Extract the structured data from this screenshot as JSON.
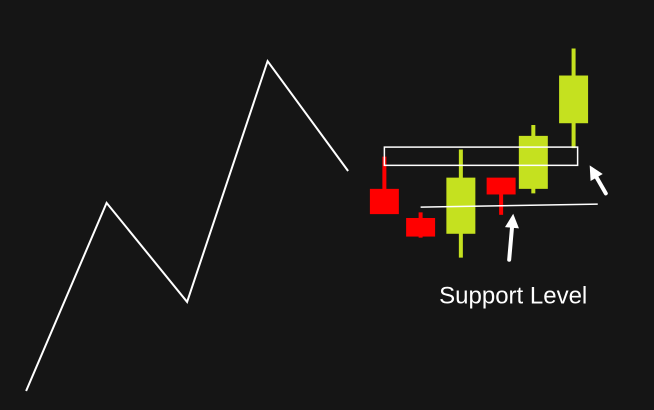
{
  "chart_data": {
    "type": "candlestick",
    "title": "",
    "xlabel": "",
    "ylabel": "",
    "grid": false,
    "legend": "none",
    "colors": {
      "background": "#151515",
      "bullish": "#c5e11f",
      "bearish": "#ff0000",
      "line": "#ffffff",
      "annotation": "#ffffff"
    },
    "price_line": [
      {
        "x": 0,
        "y": 0.0
      },
      {
        "x": 1,
        "y": 53.6
      },
      {
        "x": 2,
        "y": 25.4
      },
      {
        "x": 3,
        "y": 94.0
      },
      {
        "x": 4,
        "y": 62.7
      }
    ],
    "candles": [
      {
        "x": 4.45,
        "open": 57.6,
        "close": 50.4,
        "high": 66.8,
        "low": 51.0,
        "direction": "bearish"
      },
      {
        "x": 4.9,
        "open": 49.3,
        "close": 44.0,
        "high": 50.9,
        "low": 43.7,
        "direction": "bearish"
      },
      {
        "x": 5.4,
        "open": 44.8,
        "close": 60.8,
        "high": 68.8,
        "low": 38.0,
        "direction": "bullish"
      },
      {
        "x": 5.9,
        "open": 60.8,
        "close": 56.0,
        "high": 59.8,
        "low": 50.2,
        "direction": "bearish"
      },
      {
        "x": 6.3,
        "open": 57.6,
        "close": 72.7,
        "high": 75.8,
        "low": 56.3,
        "direction": "bullish"
      },
      {
        "x": 6.8,
        "open": 76.3,
        "close": 89.9,
        "high": 97.6,
        "low": 69.2,
        "direction": "bullish"
      }
    ],
    "support_zone": {
      "x_start": 4.45,
      "x_end": 6.85,
      "y_low": 64.3,
      "y_high": 69.5
    },
    "support_line": {
      "x_start": 4.9,
      "x_end": 7.1,
      "y": 52.4
    },
    "annotations": [
      {
        "label": "Support Level",
        "x": 6.05,
        "y": 25.0
      },
      {
        "label": "",
        "arrow_from": [
          6.0,
          37.4
        ],
        "arrow_to": [
          6.05,
          50.5
        ]
      },
      {
        "label": "",
        "arrow_from": [
          7.2,
          56.3
        ],
        "arrow_to": [
          7.0,
          64.3
        ]
      }
    ],
    "xlim": [
      -0.15,
      7.6
    ],
    "ylim": [
      -2.0,
      108.0
    ]
  }
}
